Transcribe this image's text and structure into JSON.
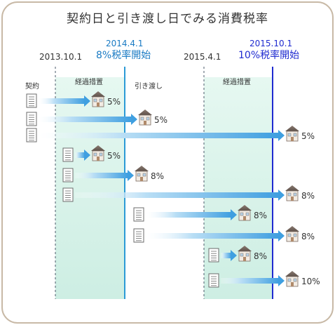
{
  "title": "契約日と引き渡し日でみる消費税率",
  "dates": {
    "d1": "2013.10.1",
    "d2": "2014.4.1",
    "d3": "2015.4.1",
    "d4": "2015.10.1"
  },
  "events": {
    "e1": "8%税率開始",
    "e2": "10%税率開始"
  },
  "zone_labels": {
    "keiyaku": "契約",
    "keika1": "経過措置",
    "hikiwatashi": "引き渡し",
    "keika2": "経過措置"
  },
  "rows": [
    {
      "rate": "5%"
    },
    {
      "rate": "5%"
    },
    {
      "rate": "5%"
    },
    {
      "rate": "5%"
    },
    {
      "rate": "8%"
    },
    {
      "rate": "8%"
    },
    {
      "rate": "8%"
    },
    {
      "rate": "8%"
    },
    {
      "rate": "8%"
    },
    {
      "rate": "10%"
    }
  ],
  "colors": {
    "background": "#ffffff",
    "frame": "#c8b9a6",
    "zone_fill": "#d7f3ea",
    "line_8pct": "#2b9ad6",
    "line_10pct": "#1f2bd0",
    "arrow": "#4aa6e3",
    "title_text": "#333333",
    "date_blue": "#1a7bc4",
    "date_navy": "#1f2bd0"
  }
}
